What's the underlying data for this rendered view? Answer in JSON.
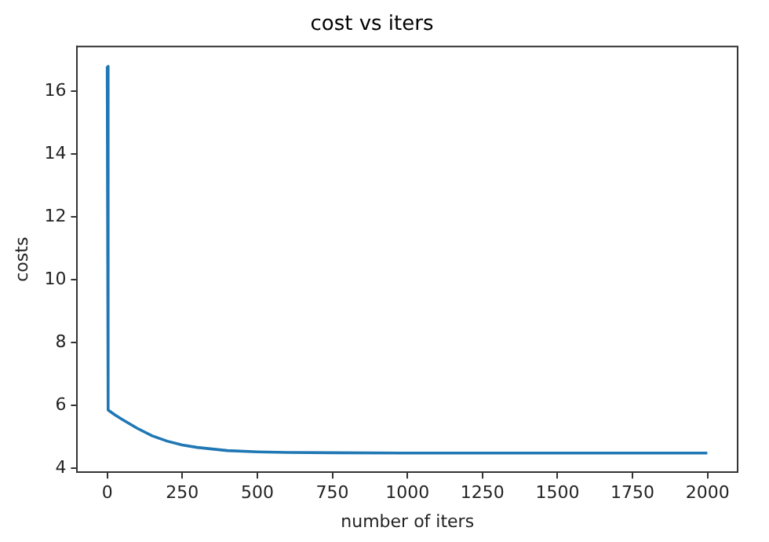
{
  "chart_data": {
    "type": "line",
    "title": "cost vs iters",
    "xlabel": "number of iters",
    "ylabel": "costs",
    "series": [
      {
        "color": "#1f77b4",
        "x": [
          0,
          3,
          25,
          50,
          100,
          150,
          200,
          250,
          300,
          400,
          500,
          600,
          750,
          1000,
          1500,
          1999
        ],
        "values": [
          16.8,
          5.85,
          5.7,
          5.55,
          5.27,
          5.03,
          4.86,
          4.74,
          4.66,
          4.56,
          4.52,
          4.5,
          4.49,
          4.48,
          4.48,
          4.48
        ]
      }
    ],
    "xlim": [
      -100,
      2100
    ],
    "xticks": [
      0,
      250,
      500,
      750,
      1000,
      1250,
      1500,
      1750,
      2000
    ],
    "ylim": [
      3.87,
      17.43
    ],
    "yticks": [
      4,
      6,
      8,
      10,
      12,
      14,
      16
    ],
    "grid": false,
    "legend": false,
    "marker": "none",
    "line_style": "solid"
  }
}
